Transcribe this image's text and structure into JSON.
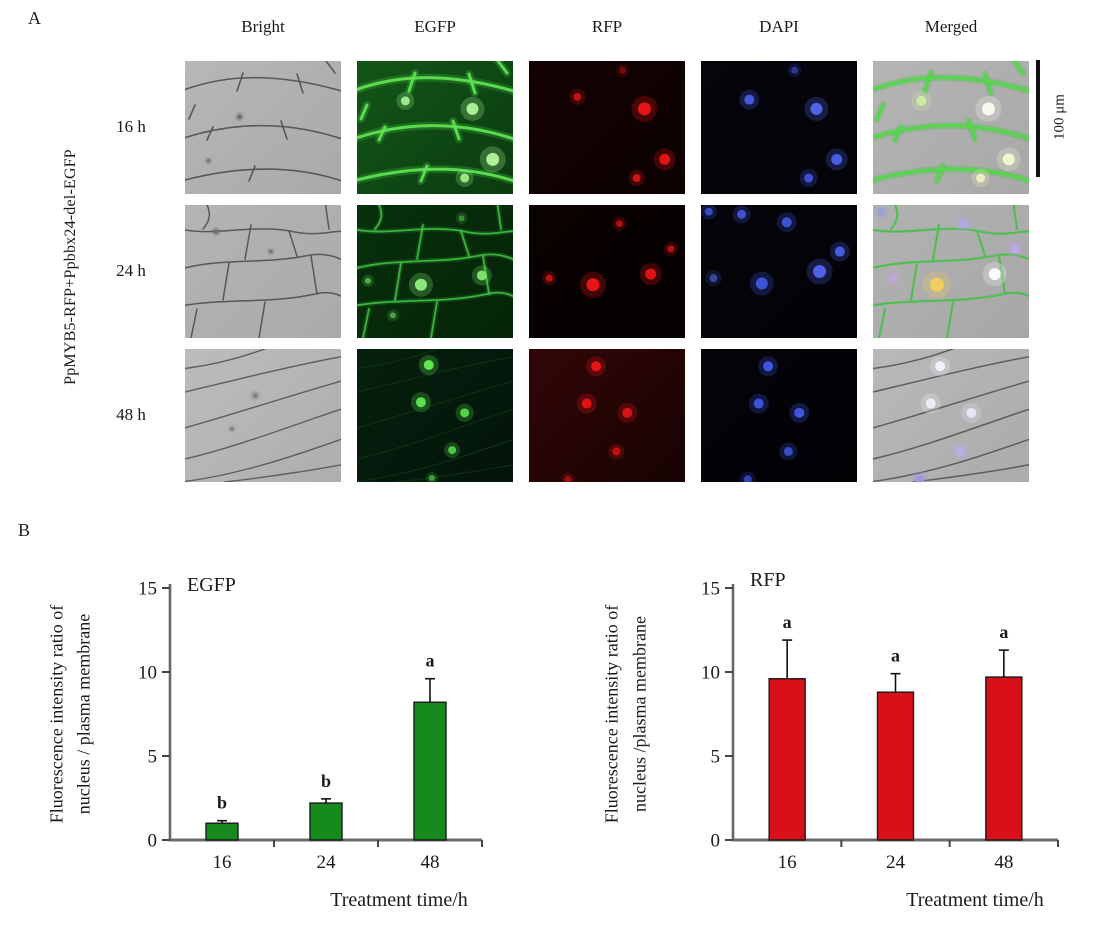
{
  "panel_a": {
    "label": "A",
    "row_group_label": "PpMYB5-RFP+Ppbbx24-del-EGFP",
    "column_headers": [
      "Bright",
      "EGFP",
      "RFP",
      "DAPI",
      "Merged"
    ],
    "scale_bar_label": "100 μm",
    "rows": [
      {
        "label": "16 h",
        "tiles": [
          {
            "channel": "Bright",
            "bg": "#b7b7b7",
            "bg2": "#a9a9a9",
            "membranes": [
              {
                "pattern": "cellsA",
                "color": "#4f4f4f",
                "width": 1.6,
                "opacity": 0.9
              }
            ],
            "spots": [
              {
                "x": 0.35,
                "y": 0.42,
                "r": 2.5,
                "color": "#6f6f6f"
              },
              {
                "x": 0.15,
                "y": 0.75,
                "r": 2,
                "color": "#7a7a7a"
              }
            ]
          },
          {
            "channel": "EGFP",
            "bg": "#135618",
            "bg2": "#0b3b10",
            "membranes": [
              {
                "pattern": "cellsA",
                "color": "#39b839",
                "width": 8,
                "opacity": 0.32
              },
              {
                "pattern": "cellsA",
                "color": "#5fdf52",
                "width": 3,
                "opacity": 0.95
              }
            ],
            "spots": [
              {
                "x": 0.31,
                "y": 0.3,
                "r": 4.5,
                "color": "#9ef08a"
              },
              {
                "x": 0.74,
                "y": 0.36,
                "r": 6,
                "color": "#aef79a"
              },
              {
                "x": 0.87,
                "y": 0.74,
                "r": 6.5,
                "color": "#b4f79e"
              },
              {
                "x": 0.69,
                "y": 0.88,
                "r": 4.5,
                "color": "#9bee88"
              }
            ]
          },
          {
            "channel": "RFP",
            "bg": "#140202",
            "bg2": "#0c0101",
            "membranes": [],
            "spots": [
              {
                "x": 0.31,
                "y": 0.27,
                "r": 4,
                "color": "#c31313"
              },
              {
                "x": 0.74,
                "y": 0.36,
                "r": 6.5,
                "color": "#ef1515"
              },
              {
                "x": 0.87,
                "y": 0.74,
                "r": 5.5,
                "color": "#e81414"
              },
              {
                "x": 0.69,
                "y": 0.88,
                "r": 4,
                "color": "#d81313"
              },
              {
                "x": 0.6,
                "y": 0.07,
                "r": 3.5,
                "color": "#7a0d0d"
              }
            ]
          },
          {
            "channel": "DAPI",
            "bg": "#05050c",
            "bg2": "#030309",
            "membranes": [],
            "spots": [
              {
                "x": 0.31,
                "y": 0.29,
                "r": 5,
                "color": "#4a5ce8"
              },
              {
                "x": 0.74,
                "y": 0.36,
                "r": 6,
                "color": "#5468f0"
              },
              {
                "x": 0.87,
                "y": 0.74,
                "r": 5.5,
                "color": "#4d60ea"
              },
              {
                "x": 0.69,
                "y": 0.88,
                "r": 4.5,
                "color": "#3f52d8"
              },
              {
                "x": 0.6,
                "y": 0.07,
                "r": 3.5,
                "color": "#2a3a99"
              }
            ]
          },
          {
            "channel": "Merged",
            "bg": "#b5b5b5",
            "bg2": "#a8a8a8",
            "membranes": [
              {
                "pattern": "cellsA",
                "color": "#5a5a5a",
                "width": 1.4,
                "opacity": 0.7
              },
              {
                "pattern": "cellsA",
                "color": "#3fc93f",
                "width": 7,
                "opacity": 0.35
              },
              {
                "pattern": "cellsA",
                "color": "#55d84b",
                "width": 3,
                "opacity": 0.95
              }
            ],
            "spots": [
              {
                "x": 0.31,
                "y": 0.3,
                "r": 5,
                "color": "#cdeea0"
              },
              {
                "x": 0.74,
                "y": 0.36,
                "r": 6.5,
                "color": "#fbfbf0"
              },
              {
                "x": 0.87,
                "y": 0.74,
                "r": 6,
                "color": "#f5f8cf"
              },
              {
                "x": 0.69,
                "y": 0.88,
                "r": 4.5,
                "color": "#eef2bd"
              }
            ]
          }
        ]
      },
      {
        "label": "24 h",
        "tiles": [
          {
            "channel": "Bright",
            "bg": "#b4b4b4",
            "bg2": "#aaaaaa",
            "membranes": [
              {
                "pattern": "cellsB",
                "color": "#4f4f4f",
                "width": 1.5,
                "opacity": 0.9
              }
            ],
            "spots": [
              {
                "x": 0.2,
                "y": 0.2,
                "r": 2.5,
                "color": "#6f6f6f"
              },
              {
                "x": 0.55,
                "y": 0.35,
                "r": 2,
                "color": "#777777"
              }
            ]
          },
          {
            "channel": "EGFP",
            "bg": "#07300c",
            "bg2": "#052408",
            "membranes": [
              {
                "pattern": "cellsB",
                "color": "#2fa035",
                "width": 5,
                "opacity": 0.25
              },
              {
                "pattern": "cellsB",
                "color": "#3fbf43",
                "width": 1.8,
                "opacity": 0.9
              }
            ],
            "spots": [
              {
                "x": 0.41,
                "y": 0.6,
                "r": 6,
                "color": "#8df07e"
              },
              {
                "x": 0.8,
                "y": 0.53,
                "r": 5,
                "color": "#7fe870"
              },
              {
                "x": 0.07,
                "y": 0.57,
                "r": 3,
                "color": "#55b34c"
              },
              {
                "x": 0.23,
                "y": 0.83,
                "r": 3,
                "color": "#4da346"
              },
              {
                "x": 0.67,
                "y": 0.1,
                "r": 3,
                "color": "#3f8f3a"
              }
            ]
          },
          {
            "channel": "RFP",
            "bg": "#0a0101",
            "bg2": "#070101",
            "membranes": [],
            "spots": [
              {
                "x": 0.13,
                "y": 0.55,
                "r": 3.5,
                "color": "#c81212"
              },
              {
                "x": 0.41,
                "y": 0.6,
                "r": 6.5,
                "color": "#f01616"
              },
              {
                "x": 0.78,
                "y": 0.52,
                "r": 5.5,
                "color": "#e81414"
              },
              {
                "x": 0.58,
                "y": 0.14,
                "r": 3.5,
                "color": "#b01010"
              },
              {
                "x": 0.91,
                "y": 0.33,
                "r": 3.5,
                "color": "#c01111"
              }
            ]
          },
          {
            "channel": "DAPI",
            "bg": "#04040a",
            "bg2": "#020206",
            "membranes": [],
            "spots": [
              {
                "x": 0.05,
                "y": 0.05,
                "r": 4,
                "color": "#3a4ecc"
              },
              {
                "x": 0.26,
                "y": 0.07,
                "r": 4.5,
                "color": "#3f55d8"
              },
              {
                "x": 0.55,
                "y": 0.13,
                "r": 5,
                "color": "#4055dd"
              },
              {
                "x": 0.89,
                "y": 0.35,
                "r": 5,
                "color": "#4a5fe8"
              },
              {
                "x": 0.76,
                "y": 0.5,
                "r": 6.5,
                "color": "#5064f0"
              },
              {
                "x": 0.39,
                "y": 0.59,
                "r": 6,
                "color": "#4156e0"
              },
              {
                "x": 0.08,
                "y": 0.55,
                "r": 4,
                "color": "#37499f"
              }
            ]
          },
          {
            "channel": "Merged",
            "bg": "#b2b2b2",
            "bg2": "#a7a7a7",
            "membranes": [
              {
                "pattern": "cellsB",
                "color": "#5a5a5a",
                "width": 1.4,
                "opacity": 0.6
              },
              {
                "pattern": "cellsB",
                "color": "#4fc44f",
                "width": 2.4,
                "opacity": 0.85
              }
            ],
            "spots": [
              {
                "x": 0.41,
                "y": 0.6,
                "r": 7,
                "color": "#f2cd5e"
              },
              {
                "x": 0.78,
                "y": 0.52,
                "r": 6,
                "color": "#fdfdfd"
              },
              {
                "x": 0.58,
                "y": 0.14,
                "r": 4.5,
                "color": "#b4a6e8"
              },
              {
                "x": 0.13,
                "y": 0.55,
                "r": 4,
                "color": "#c3a6e0"
              },
              {
                "x": 0.91,
                "y": 0.33,
                "r": 4.5,
                "color": "#bda8ea"
              },
              {
                "x": 0.05,
                "y": 0.05,
                "r": 4,
                "color": "#9aa0d8"
              }
            ]
          }
        ]
      },
      {
        "label": "48 h",
        "tiles": [
          {
            "channel": "Bright",
            "bg": "#bcbcbc",
            "bg2": "#aeaeae",
            "membranes": [
              {
                "pattern": "cellsC",
                "color": "#555555",
                "width": 1.4,
                "opacity": 0.9
              }
            ],
            "spots": [
              {
                "x": 0.45,
                "y": 0.35,
                "r": 2.5,
                "color": "#7d7d7d"
              },
              {
                "x": 0.3,
                "y": 0.6,
                "r": 2,
                "color": "#828282"
              }
            ]
          },
          {
            "channel": "EGFP",
            "bg": "#061f0d",
            "bg2": "#03140a",
            "membranes": [
              {
                "pattern": "cellsC",
                "color": "#123f18",
                "width": 1.2,
                "opacity": 0.6
              }
            ],
            "spots": [
              {
                "x": 0.46,
                "y": 0.12,
                "r": 5,
                "color": "#66ee55"
              },
              {
                "x": 0.41,
                "y": 0.4,
                "r": 5,
                "color": "#5fe84f"
              },
              {
                "x": 0.69,
                "y": 0.48,
                "r": 4.5,
                "color": "#58dd4a"
              },
              {
                "x": 0.61,
                "y": 0.76,
                "r": 4,
                "color": "#4fd044"
              },
              {
                "x": 0.48,
                "y": 0.97,
                "r": 3,
                "color": "#3da83a"
              }
            ]
          },
          {
            "channel": "RFP",
            "bg": "#330606",
            "bg2": "#170303",
            "membranes": [],
            "spots": [
              {
                "x": 0.43,
                "y": 0.13,
                "r": 5,
                "color": "#ee1515"
              },
              {
                "x": 0.37,
                "y": 0.41,
                "r": 5,
                "color": "#e81414"
              },
              {
                "x": 0.63,
                "y": 0.48,
                "r": 5,
                "color": "#e01414"
              },
              {
                "x": 0.56,
                "y": 0.77,
                "r": 4,
                "color": "#c81212"
              },
              {
                "x": 0.25,
                "y": 0.98,
                "r": 3.5,
                "color": "#a81010"
              }
            ]
          },
          {
            "channel": "DAPI",
            "bg": "#030309",
            "bg2": "#020205",
            "membranes": [],
            "spots": [
              {
                "x": 0.43,
                "y": 0.13,
                "r": 5,
                "color": "#4257e8"
              },
              {
                "x": 0.37,
                "y": 0.41,
                "r": 5,
                "color": "#3f54e0"
              },
              {
                "x": 0.63,
                "y": 0.48,
                "r": 5,
                "color": "#4458ea"
              },
              {
                "x": 0.56,
                "y": 0.77,
                "r": 4.5,
                "color": "#3a4ed0"
              },
              {
                "x": 0.3,
                "y": 0.98,
                "r": 4,
                "color": "#3545b8"
              }
            ]
          },
          {
            "channel": "Merged",
            "bg": "#b9b9b9",
            "bg2": "#ababab",
            "membranes": [
              {
                "pattern": "cellsC",
                "color": "#4f4f4f",
                "width": 1.5,
                "opacity": 0.85
              }
            ],
            "spots": [
              {
                "x": 0.43,
                "y": 0.13,
                "r": 5,
                "color": "#f4f4ff"
              },
              {
                "x": 0.37,
                "y": 0.41,
                "r": 5,
                "color": "#efeffc"
              },
              {
                "x": 0.63,
                "y": 0.48,
                "r": 5,
                "color": "#e8e5fa"
              },
              {
                "x": 0.56,
                "y": 0.77,
                "r": 4.5,
                "color": "#b9aee8"
              },
              {
                "x": 0.3,
                "y": 0.98,
                "r": 4.5,
                "color": "#a394dd"
              }
            ]
          }
        ]
      }
    ]
  },
  "panel_b": {
    "label": "B"
  },
  "chart_data": [
    {
      "type": "bar",
      "title": "EGFP",
      "categories": [
        "16",
        "24",
        "48"
      ],
      "values": [
        1.0,
        2.2,
        8.2
      ],
      "errors": [
        0.15,
        0.25,
        1.4
      ],
      "sig_labels": [
        "b",
        "b",
        "a"
      ],
      "bar_color": "#178a1e",
      "bar_border": "#1a1a1a",
      "xlabel": "Treatment time/h",
      "ylabel_line1": "Fluorescence intensity ratio of",
      "ylabel_line2": "nucleus / plasma membrane",
      "ylim": [
        0,
        15
      ],
      "yticks": [
        0,
        5,
        10,
        15
      ],
      "legend": "none",
      "grid": "off"
    },
    {
      "type": "bar",
      "title": "RFP",
      "categories": [
        "16",
        "24",
        "48"
      ],
      "values": [
        9.6,
        8.8,
        9.7
      ],
      "errors": [
        2.3,
        1.1,
        1.6
      ],
      "sig_labels": [
        "a",
        "a",
        "a"
      ],
      "bar_color": "#d8101a",
      "bar_border": "#1a1a1a",
      "xlabel": "Treatment time/h",
      "ylabel_line1": "Fluorescence intensity ratio of",
      "ylabel_line2": "nucleus /plasma membrane",
      "ylim": [
        0,
        15
      ],
      "yticks": [
        0,
        5,
        10,
        15
      ],
      "legend": "none",
      "grid": "off"
    }
  ]
}
